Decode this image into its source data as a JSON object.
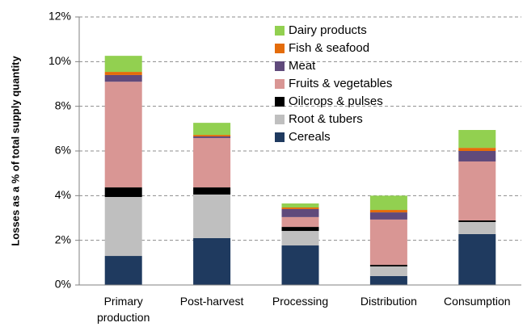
{
  "chart_data": {
    "type": "stacked_bar",
    "y_label": "Losses as a % of total supply quantity",
    "categories": [
      "Primary production",
      "Post-harvest",
      "Processing",
      "Distribution",
      "Consumption"
    ],
    "series": [
      {
        "name": "Cereals",
        "color": "#1f3a5f",
        "values": [
          1.3,
          2.1,
          1.77,
          0.4,
          2.28
        ]
      },
      {
        "name": "Root & tubers",
        "color": "#bfbfbf",
        "values": [
          2.64,
          1.95,
          0.65,
          0.43,
          0.54
        ]
      },
      {
        "name": "Oilcrops & pulses",
        "color": "#000000",
        "values": [
          0.43,
          0.32,
          0.18,
          0.07,
          0.07
        ]
      },
      {
        "name": "Fruits & vegetables",
        "color": "#d99694",
        "values": [
          4.73,
          2.21,
          0.44,
          2.03,
          2.64
        ]
      },
      {
        "name": "Meat",
        "color": "#604a7b",
        "values": [
          0.3,
          0.07,
          0.36,
          0.32,
          0.47
        ]
      },
      {
        "name": "Fish & seafood",
        "color": "#e46c0a",
        "values": [
          0.14,
          0.07,
          0.07,
          0.11,
          0.14
        ]
      },
      {
        "name": "Dairy products",
        "color": "#92d050",
        "values": [
          0.72,
          0.54,
          0.18,
          0.64,
          0.8
        ]
      }
    ],
    "ylim": [
      0,
      12
    ],
    "yticks": [
      {
        "value": 0,
        "label": "0%"
      },
      {
        "value": 2,
        "label": "2%"
      },
      {
        "value": 4,
        "label": "4%"
      },
      {
        "value": 6,
        "label": "6%"
      },
      {
        "value": 8,
        "label": "8%"
      },
      {
        "value": 10,
        "label": "10%"
      },
      {
        "value": 12,
        "label": "12%"
      }
    ],
    "grid": true
  }
}
